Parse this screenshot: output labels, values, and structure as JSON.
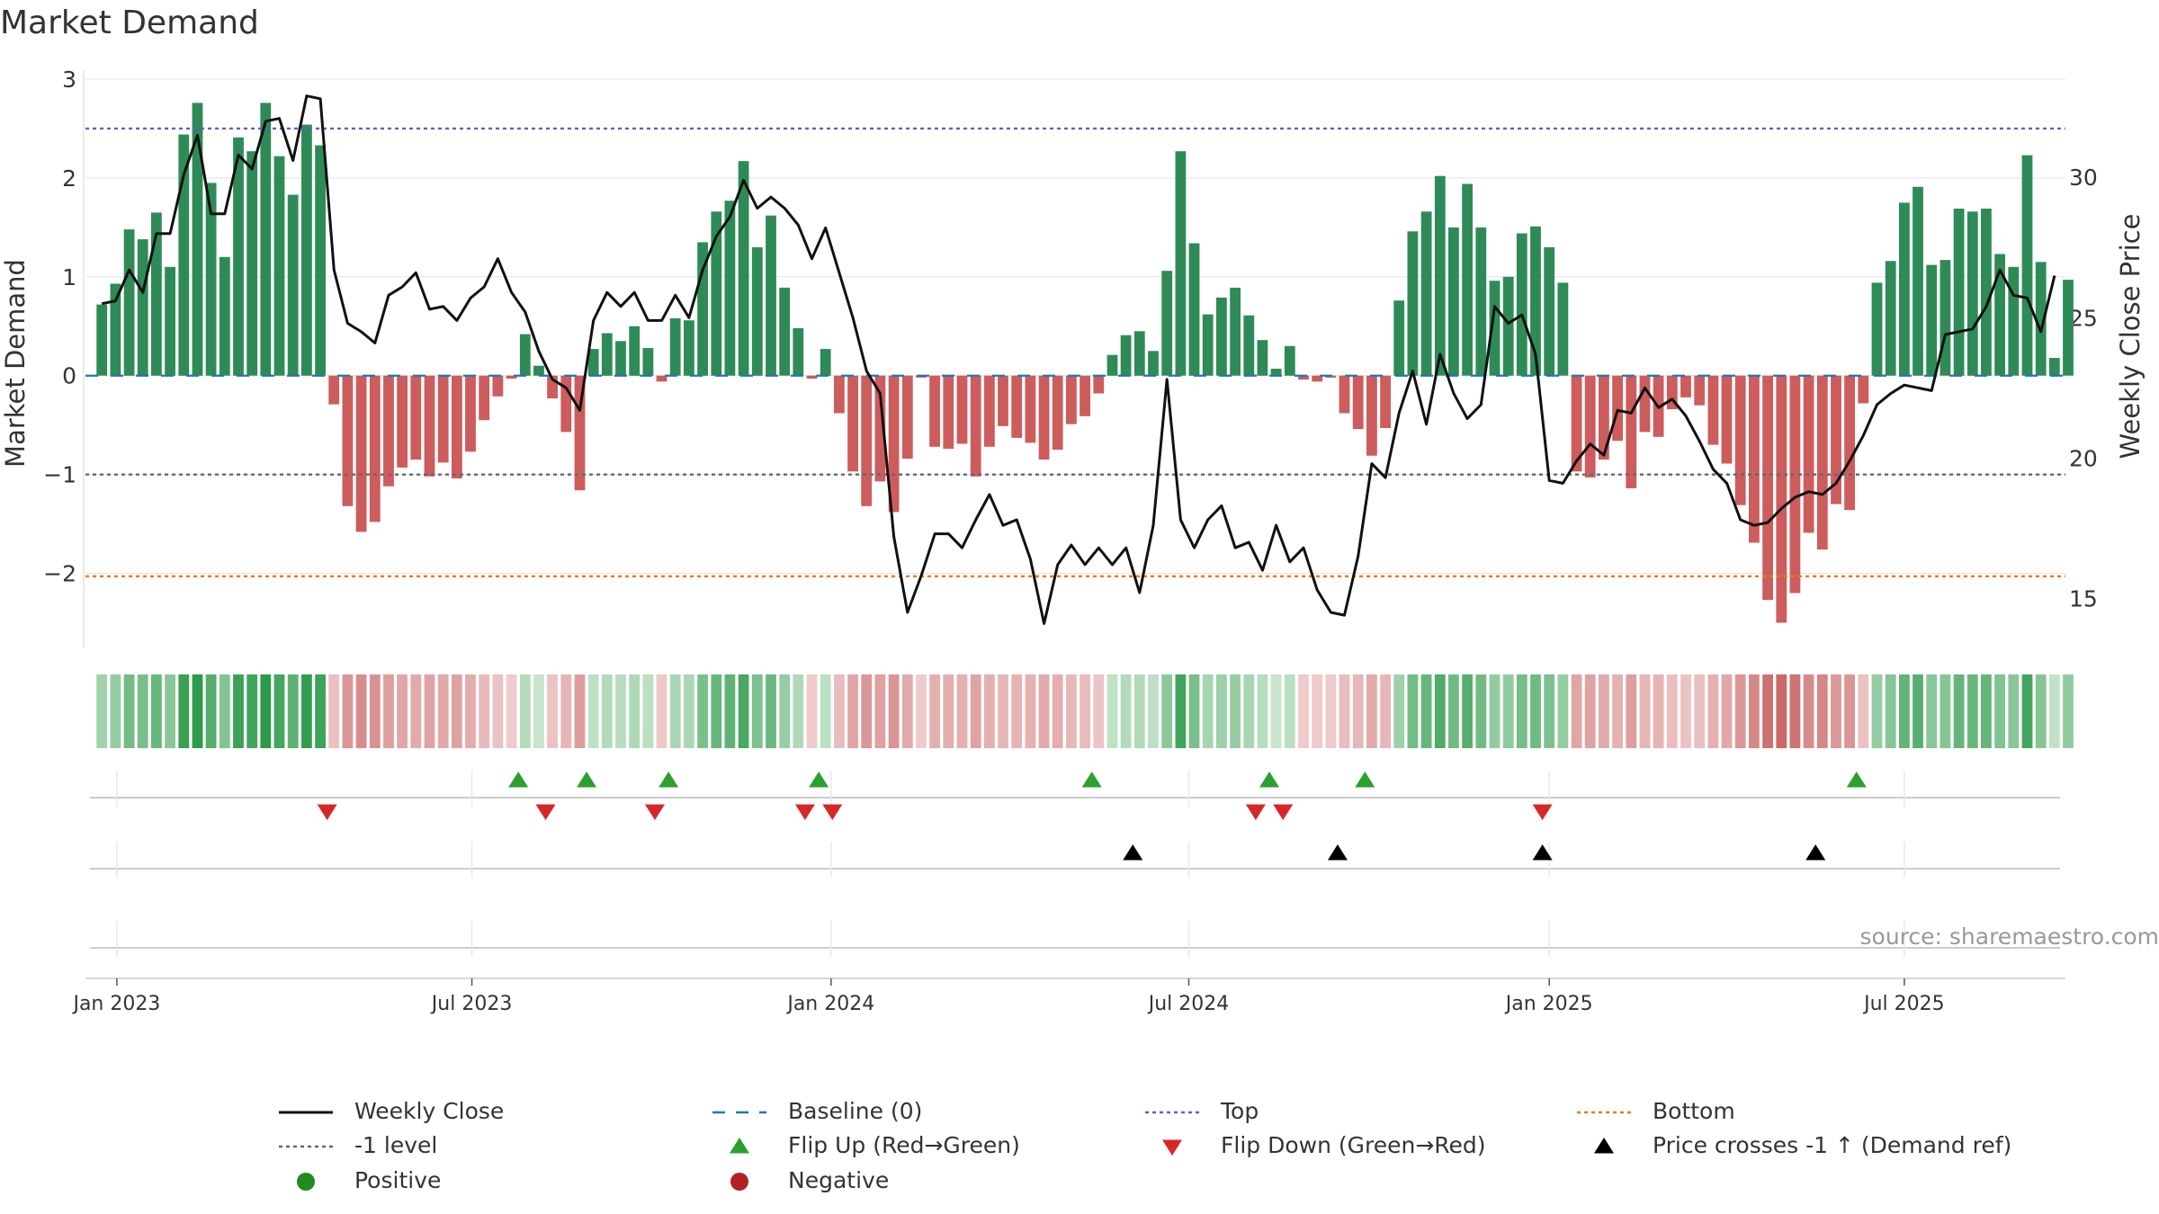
{
  "page": {
    "title": "Market Demand"
  },
  "colors": {
    "positive_bar": "#2e8b57",
    "negative_bar": "#cd5c5c",
    "price_line": "#111111",
    "baseline": "#1f77b4",
    "top": "#6a5acd",
    "minus_one": "#666677",
    "bottom": "#e67e22",
    "flip_up": "#2ca02c",
    "flip_down": "#d62728",
    "cross": "#000000",
    "positive_dot": "#228b22",
    "negative_dot": "#b22222"
  },
  "chart_data": {
    "type": "bar",
    "title": "Market Demand",
    "ylabel": "Market Demand",
    "y2label": "Weekly Close Price",
    "ylim": [
      -2.75,
      3.0
    ],
    "y2lim": [
      13.25,
      33.5
    ],
    "yticks": [
      3,
      2,
      1,
      0,
      -1,
      -2
    ],
    "ytick_labels": [
      "3",
      "2",
      "1",
      "0",
      "−1",
      "−2"
    ],
    "y2ticks": [
      30,
      25,
      20,
      15
    ],
    "y2tick_labels": [
      "30",
      "25",
      "20",
      "15"
    ],
    "xlim_weeks": [
      -1.2,
      143.8
    ],
    "x_ticks": [
      {
        "label": "Jan 2023",
        "week": 1.1
      },
      {
        "label": "Jul 2023",
        "week": 27.1
      },
      {
        "label": "Jan 2024",
        "week": 53.4
      },
      {
        "label": "Jul 2024",
        "week": 79.6
      },
      {
        "label": "Jan 2025",
        "week": 106.0
      },
      {
        "label": "Jul 2025",
        "week": 132.0
      }
    ],
    "reference_lines": {
      "top": 2.5,
      "minus_one": -1.0,
      "bottom": -2.03,
      "baseline": 0
    },
    "demand": [
      0.72,
      0.93,
      1.48,
      1.38,
      1.65,
      1.1,
      2.44,
      2.76,
      1.95,
      1.2,
      2.41,
      2.27,
      2.76,
      2.22,
      1.83,
      2.54,
      2.33,
      -0.29,
      -1.32,
      -1.58,
      -1.48,
      -1.12,
      -0.93,
      -0.85,
      -1.02,
      -0.88,
      -1.04,
      -0.77,
      -0.45,
      -0.21,
      -0.03,
      0.42,
      0.1,
      -0.23,
      -0.57,
      -1.16,
      0.27,
      0.43,
      0.35,
      0.5,
      0.28,
      -0.06,
      0.58,
      0.56,
      1.35,
      1.66,
      1.77,
      2.17,
      1.3,
      1.62,
      0.89,
      0.48,
      -0.03,
      0.27,
      -0.38,
      -0.97,
      -1.32,
      -1.07,
      -1.38,
      -0.84,
      -0.02,
      -0.72,
      -0.74,
      -0.69,
      -1.02,
      -0.72,
      -0.51,
      -0.63,
      -0.68,
      -0.85,
      -0.75,
      -0.49,
      -0.41,
      -0.18,
      0.21,
      0.41,
      0.45,
      0.25,
      1.06,
      2.27,
      1.34,
      0.62,
      0.79,
      0.89,
      0.61,
      0.36,
      0.07,
      0.3,
      -0.04,
      -0.06,
      -0.02,
      -0.38,
      -0.54,
      -0.81,
      -0.53,
      0.76,
      1.46,
      1.66,
      2.02,
      1.5,
      1.94,
      1.5,
      0.96,
      1.0,
      1.44,
      1.51,
      1.3,
      0.94,
      -0.97,
      -1.03,
      -0.85,
      -0.66,
      -1.14,
      -0.57,
      -0.62,
      -0.34,
      -0.22,
      -0.3,
      -0.7,
      -0.89,
      -1.31,
      -1.69,
      -2.27,
      -2.5,
      -2.2,
      -1.59,
      -1.76,
      -1.3,
      -1.36,
      -0.28,
      0.94,
      1.16,
      1.75,
      1.91,
      1.12,
      1.17,
      1.69,
      1.66,
      1.69,
      1.23,
      1.1,
      2.23,
      1.15,
      0.18,
      0.97
    ],
    "close": [
      25.5,
      25.6,
      26.7,
      25.9,
      28.0,
      28.0,
      30.1,
      31.5,
      28.7,
      28.7,
      30.8,
      30.3,
      32.0,
      32.1,
      30.6,
      32.9,
      32.8,
      26.7,
      24.8,
      24.5,
      24.1,
      25.8,
      26.1,
      26.6,
      25.3,
      25.4,
      24.9,
      25.7,
      26.1,
      27.1,
      25.9,
      25.2,
      23.8,
      22.8,
      22.5,
      21.7,
      24.9,
      25.9,
      25.4,
      25.9,
      24.9,
      24.9,
      25.8,
      25.0,
      26.7,
      27.9,
      28.6,
      29.9,
      28.9,
      29.3,
      28.9,
      28.3,
      27.1,
      28.2,
      26.6,
      25.0,
      23.1,
      22.3,
      17.2,
      14.5,
      15.8,
      17.3,
      17.3,
      16.8,
      17.8,
      18.7,
      17.6,
      17.8,
      16.4,
      14.1,
      16.2,
      16.9,
      16.2,
      16.8,
      16.2,
      16.8,
      15.2,
      17.6,
      22.8,
      17.8,
      16.8,
      17.8,
      18.3,
      16.8,
      17.0,
      16.0,
      17.6,
      16.3,
      16.8,
      15.3,
      14.5,
      14.4,
      16.5,
      19.8,
      19.3,
      21.6,
      23.1,
      21.2,
      23.7,
      22.3,
      21.4,
      21.9,
      25.4,
      24.8,
      25.1,
      23.7,
      19.2,
      19.1,
      19.9,
      20.5,
      20.1,
      21.7,
      21.6,
      22.5,
      21.8,
      22.1,
      21.5,
      20.6,
      19.6,
      19.1,
      17.8,
      17.6,
      17.7,
      18.2,
      18.6,
      18.8,
      18.7,
      19.1,
      19.9,
      20.8,
      21.9,
      22.3,
      22.6,
      22.5,
      22.4,
      24.4,
      24.5,
      24.6,
      25.4,
      26.7,
      25.8,
      25.7,
      24.5,
      26.5
    ],
    "flip_up_weeks": [
      30.5,
      35.5,
      41.5,
      52.5,
      72.5,
      85.5,
      92.5,
      128.5
    ],
    "flip_down_weeks": [
      16.5,
      32.5,
      40.5,
      51.5,
      53.5,
      84.5,
      86.5,
      105.5
    ],
    "price_cross_weeks": [
      75.5,
      90.5,
      105.5,
      125.5
    ],
    "legend": [
      {
        "label": "Weekly Close",
        "kind": "line"
      },
      {
        "label": "Baseline (0)",
        "kind": "dash"
      },
      {
        "label": "Top",
        "kind": "dot-purple"
      },
      {
        "label": "Bottom",
        "kind": "dot-orange"
      },
      {
        "label": "-1 level",
        "kind": "dot-gray"
      },
      {
        "label": "Flip Up (Red→Green)",
        "kind": "tri-up-green"
      },
      {
        "label": "Flip Down (Green→Red)",
        "kind": "tri-down-red"
      },
      {
        "label": "Price crosses -1 ↑ (Demand ref)",
        "kind": "tri-up-black"
      },
      {
        "label": "Positive",
        "kind": "circle-green"
      },
      {
        "label": "Negative",
        "kind": "circle-red"
      }
    ],
    "source": "source: sharemaestro.com"
  }
}
